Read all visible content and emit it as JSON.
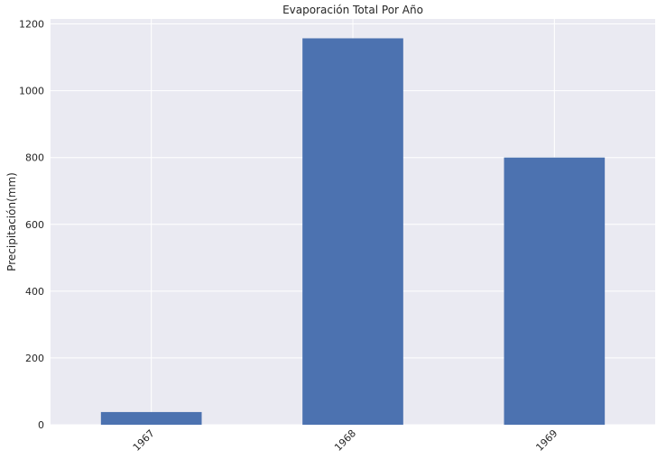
{
  "chart_data": {
    "type": "bar",
    "title": "Evaporación Total Por Año",
    "xlabel": "",
    "ylabel": "Precipitación(mm)",
    "categories": [
      "1967",
      "1968",
      "1969"
    ],
    "values": [
      38,
      1157,
      800
    ],
    "ylim": [
      0,
      1215
    ],
    "yticks": [
      0,
      200,
      400,
      600,
      800,
      1000,
      1200
    ],
    "grid": true,
    "legend": "none",
    "bar_color": "#4c72b0",
    "background_color": "#eaeaf2",
    "grid_color": "#ffffff"
  }
}
